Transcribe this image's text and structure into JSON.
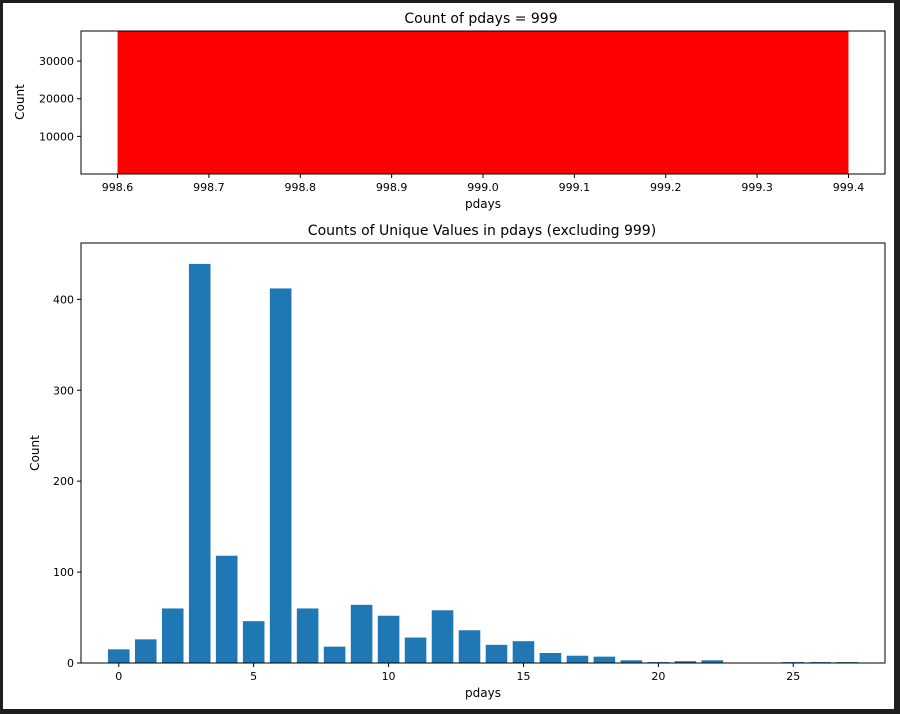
{
  "chart_data": [
    {
      "type": "bar",
      "title": "Count of pdays = 999",
      "xlabel": "pdays",
      "ylabel": "Count",
      "xlim": [
        998.56,
        999.44
      ],
      "ylim": [
        0,
        38000
      ],
      "xticks": [
        998.6,
        998.7,
        998.8,
        998.9,
        999.0,
        999.1,
        999.2,
        999.3,
        999.4
      ],
      "xtick_labels": [
        "998.6",
        "998.7",
        "998.8",
        "998.9",
        "999.0",
        "999.1",
        "999.2",
        "999.3",
        "999.4"
      ],
      "yticks": [
        10000,
        20000,
        30000
      ],
      "ytick_labels": [
        "10000",
        "20000",
        "30000"
      ],
      "x": [
        999
      ],
      "values": [
        39673
      ],
      "bar_width": 0.8,
      "color": "#ff0000",
      "grid": false
    },
    {
      "type": "bar",
      "title": "Counts of Unique Values in pdays (excluding 999)",
      "xlabel": "pdays",
      "ylabel": "Count",
      "xlim": [
        -1.4,
        28.4
      ],
      "ylim": [
        0,
        462
      ],
      "xticks": [
        0,
        5,
        10,
        15,
        20,
        25
      ],
      "xtick_labels": [
        "0",
        "5",
        "10",
        "15",
        "20",
        "25"
      ],
      "yticks": [
        0,
        100,
        200,
        300,
        400
      ],
      "ytick_labels": [
        "0",
        "100",
        "200",
        "300",
        "400"
      ],
      "x": [
        0,
        1,
        2,
        3,
        4,
        5,
        6,
        7,
        8,
        9,
        10,
        11,
        12,
        13,
        14,
        15,
        16,
        17,
        18,
        19,
        20,
        21,
        22,
        25,
        26,
        27
      ],
      "values": [
        15,
        26,
        60,
        439,
        118,
        46,
        412,
        60,
        18,
        64,
        52,
        28,
        58,
        36,
        20,
        24,
        11,
        8,
        7,
        3,
        1,
        2,
        3,
        1,
        1,
        1
      ],
      "bar_width": 0.8,
      "color": "#1f77b4",
      "grid": false
    }
  ]
}
